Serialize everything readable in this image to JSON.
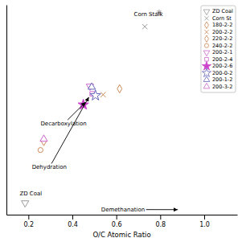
{
  "chart_data": {
    "type": "scatter",
    "x_label": "O/C Atomic Ratio",
    "xlim": [
      0.1,
      1.15
    ],
    "ylim": [
      -0.15,
      1.1
    ],
    "xticks": [
      0.2,
      0.4,
      0.6,
      0.8,
      {
        "value": 1.0,
        "label": "1.0"
      }
    ],
    "tick_labels": "x",
    "legend": "upper right",
    "series": [
      {
        "name": "ZD Coal",
        "color": "#999999",
        "marker": "triangle-down-open",
        "x": [
          0.185
        ],
        "values": [
          -0.08
        ]
      },
      {
        "name": "Corn St",
        "color": "#999999",
        "marker": "x",
        "x": [
          0.73
        ],
        "values": [
          0.97
        ]
      },
      {
        "name": "180-2-2",
        "color": "#cc8855",
        "marker": "diamond-open",
        "x": [
          0.615
        ],
        "values": [
          0.6
        ]
      },
      {
        "name": "200-2-2",
        "color": "#cc8855",
        "marker": "x",
        "x": [
          0.54
        ],
        "values": [
          0.565
        ]
      },
      {
        "name": "220-2-2",
        "color": "#cc8855",
        "marker": "diamond-open",
        "x": [
          0.27
        ],
        "values": [
          0.285
        ]
      },
      {
        "name": "240-2-2",
        "color": "#cc8855",
        "marker": "circle-open",
        "x": [
          0.255
        ],
        "values": [
          0.235
        ]
      },
      {
        "name": "200-2-1",
        "color": "#cc66cc",
        "marker": "triangle-down-open",
        "x": [
          0.48
        ],
        "values": [
          0.615
        ]
      },
      {
        "name": "200-2-4",
        "color": "#cc66cc",
        "marker": "square-open",
        "x": [
          0.49
        ],
        "values": [
          0.57
        ]
      },
      {
        "name": "200-2-6",
        "color": "#cc44cc",
        "marker": "star",
        "x": [
          0.45
        ],
        "values": [
          0.505
        ]
      },
      {
        "name": "200-0-2",
        "color": "#6666bb",
        "marker": "star-open",
        "x": [
          0.505
        ],
        "values": [
          0.56
        ]
      },
      {
        "name": "200-1-2",
        "color": "#6666bb",
        "marker": "triangle-up-open",
        "x": [
          0.488
        ],
        "values": [
          0.61
        ]
      },
      {
        "name": "200-3-2",
        "color": "#cc66cc",
        "marker": "triangle-up-open",
        "x": [
          0.27
        ],
        "values": [
          0.3
        ]
      }
    ],
    "annotations": [
      {
        "text": "Corn Stalk",
        "text_x": 0.68,
        "text_y": 1.04,
        "marker": "asterisk",
        "color": "#999999",
        "marker_x": 0.795,
        "marker_y": 1.055
      },
      {
        "text": "ZD Coal",
        "text_x": 0.16,
        "text_y": -0.01
      },
      {
        "text": "Decarboxylation",
        "text_x": 0.36,
        "text_y": 0.39,
        "x": 0.46,
        "y": 0.52
      },
      {
        "text": "Dehydration",
        "text_x": 0.295,
        "text_y": 0.13,
        "x": 0.475,
        "y": 0.55
      },
      {
        "text": "Demethanation",
        "text_x": 0.73,
        "text_y": -0.12,
        "x": 0.88,
        "y": -0.12
      }
    ]
  }
}
